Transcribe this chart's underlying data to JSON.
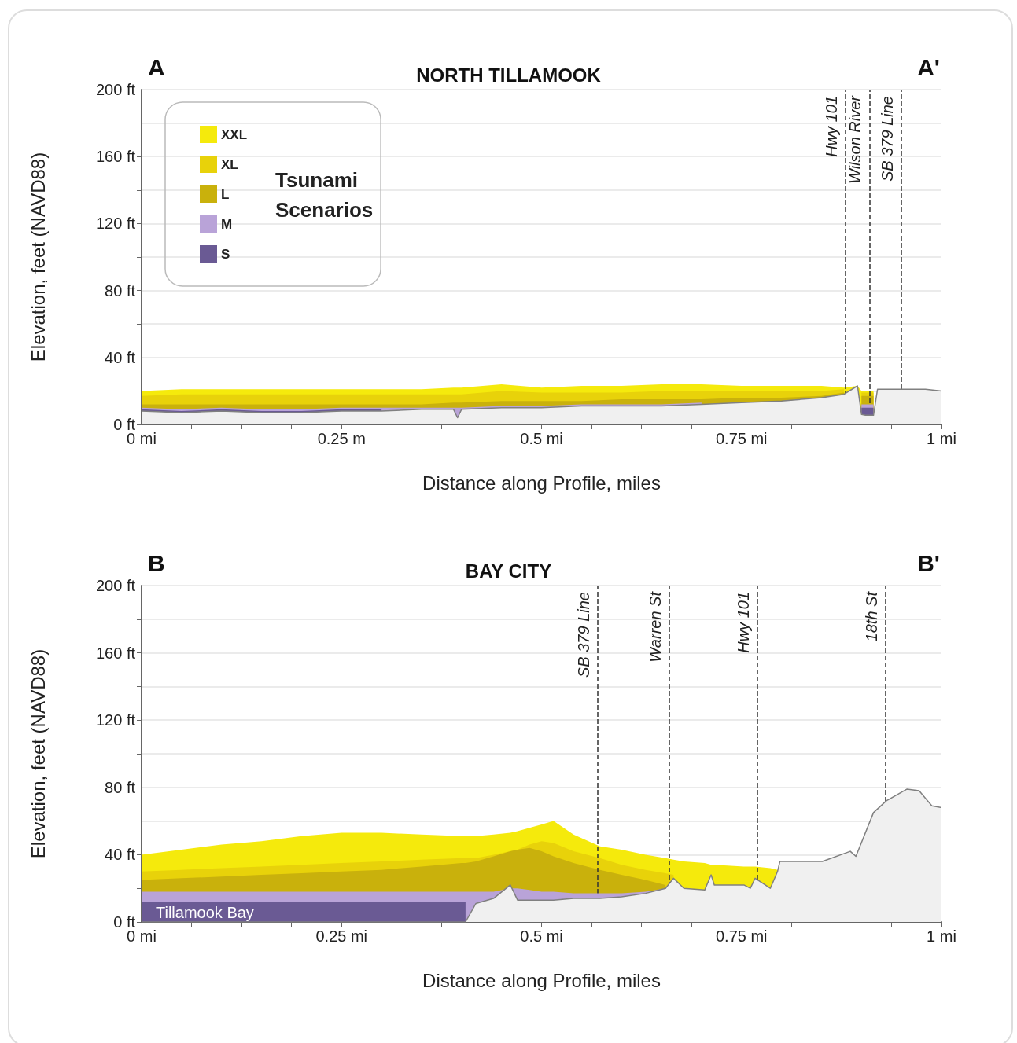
{
  "chart_data": [
    {
      "type": "area",
      "title": "NORTH TILLAMOOK",
      "xlabel": "Distance along Profile, miles",
      "ylabel": "Elevation, feet (NAVD88)",
      "legend": "top left",
      "legend_title": "Tsunami Scenarios",
      "grid": "y",
      "annotations": [
        "A",
        "A'"
      ],
      "xlim": [
        0,
        1
      ],
      "xticks": [
        {
          "value": 0,
          "label": "0 mi"
        },
        {
          "value": 0.0625,
          "label": null
        },
        {
          "value": 0.125,
          "label": null
        },
        {
          "value": 0.1875,
          "label": null
        },
        {
          "value": 0.25,
          "label": "0.25 m"
        },
        {
          "value": 0.3125,
          "label": null
        },
        {
          "value": 0.375,
          "label": null
        },
        {
          "value": 0.4375,
          "label": null
        },
        {
          "value": 0.5,
          "label": "0.5 mi"
        },
        {
          "value": 0.5625,
          "label": null
        },
        {
          "value": 0.625,
          "label": null
        },
        {
          "value": 0.6875,
          "label": null
        },
        {
          "value": 0.75,
          "label": "0.75 mi"
        },
        {
          "value": 0.8125,
          "label": null
        },
        {
          "value": 0.875,
          "label": null
        },
        {
          "value": 0.9375,
          "label": null
        },
        {
          "value": 1,
          "label": "1 mi"
        }
      ],
      "ylim": [
        0,
        200
      ],
      "yticks": [
        {
          "value": 0,
          "label": "0 ft"
        },
        {
          "value": 20,
          "label": null
        },
        {
          "value": 40,
          "label": "40 ft"
        },
        {
          "value": 60,
          "label": null
        },
        {
          "value": 80,
          "label": "80 ft"
        },
        {
          "value": 100,
          "label": null
        },
        {
          "value": 120,
          "label": "120 ft"
        },
        {
          "value": 140,
          "label": null
        },
        {
          "value": 160,
          "label": "160 ft"
        },
        {
          "value": 180,
          "label": null
        },
        {
          "value": 200,
          "label": "200 ft"
        }
      ],
      "ref_lines": [
        {
          "axis": "x",
          "value": 0.883,
          "label": "Hwy 101",
          "line_style": "dashed",
          "color": "#333333"
        },
        {
          "axis": "x",
          "value": 0.913,
          "label": "Wilson River",
          "line_style": "dashed",
          "color": "#333333"
        },
        {
          "axis": "x",
          "value": 0.949,
          "label": "SB 379 Line",
          "line_style": "dashed",
          "color": "#333333"
        }
      ],
      "x": [
        0,
        0.05,
        0.1,
        0.15,
        0.2,
        0.25,
        0.3,
        0.35,
        0.39,
        0.395,
        0.4,
        0.45,
        0.5,
        0.55,
        0.6,
        0.65,
        0.7,
        0.75,
        0.8,
        0.85,
        0.878,
        0.895,
        0.9,
        0.905,
        0.915,
        0.92,
        0.93,
        0.95,
        0.98,
        1.0
      ],
      "series": [
        {
          "name": "XXL",
          "color": "#f5ea0c",
          "values": [
            20,
            21,
            21,
            21,
            21,
            21,
            21,
            21,
            22,
            22,
            22,
            24,
            22,
            23,
            23,
            24,
            24,
            23,
            23,
            23,
            22,
            23,
            20,
            20,
            20,
            null,
            null,
            null,
            null,
            null
          ]
        },
        {
          "name": "XL",
          "color": "#e8d20a",
          "values": [
            17,
            18,
            18,
            18,
            18,
            18,
            18,
            18,
            18,
            18,
            18,
            20,
            19,
            19,
            19,
            20,
            20,
            20,
            20,
            20,
            21,
            null,
            19,
            19,
            19,
            null,
            null,
            null,
            null,
            null
          ]
        },
        {
          "name": "L",
          "color": "#c9b10c",
          "values": [
            12,
            12,
            12,
            12,
            12,
            12,
            12,
            12,
            13,
            13,
            13,
            14,
            14,
            14,
            15,
            15,
            15,
            16,
            16,
            17,
            19,
            null,
            17,
            17,
            17,
            null,
            null,
            null,
            null,
            null
          ]
        },
        {
          "name": "M",
          "color": "#b9a3d8",
          "values": [
            10,
            9,
            10,
            9,
            9,
            10,
            10,
            10,
            10,
            10,
            10,
            11,
            11,
            12,
            12,
            12,
            13,
            null,
            null,
            null,
            null,
            null,
            12,
            12,
            12,
            null,
            null,
            null,
            null,
            null
          ]
        },
        {
          "name": "S",
          "color": "#6a5a94",
          "values": [
            9,
            8,
            9,
            8,
            8,
            9,
            9,
            null,
            null,
            null,
            null,
            null,
            null,
            null,
            null,
            null,
            null,
            null,
            null,
            null,
            null,
            null,
            10,
            10,
            10,
            null,
            null,
            null,
            null,
            null
          ]
        },
        {
          "color": "#808080",
          "values": [
            8,
            7,
            8,
            7,
            7,
            8,
            8,
            9,
            9,
            4,
            9,
            10,
            10,
            11,
            11,
            11,
            12,
            13,
            14,
            16,
            18,
            23,
            6,
            5.5,
            5.5,
            21,
            21,
            21,
            21,
            20
          ]
        }
      ]
    },
    {
      "type": "area",
      "title": "BAY CITY",
      "xlabel": "Distance along Profile, miles",
      "ylabel": "Elevation, feet (NAVD88)",
      "grid": "y",
      "annotations": [
        "B",
        "B'",
        "Tillamook Bay"
      ],
      "xlim": [
        0,
        1
      ],
      "xticks": [
        {
          "value": 0,
          "label": "0 mi"
        },
        {
          "value": 0.0625,
          "label": null
        },
        {
          "value": 0.125,
          "label": null
        },
        {
          "value": 0.1875,
          "label": null
        },
        {
          "value": 0.25,
          "label": "0.25 mi"
        },
        {
          "value": 0.3125,
          "label": null
        },
        {
          "value": 0.375,
          "label": null
        },
        {
          "value": 0.4375,
          "label": null
        },
        {
          "value": 0.5,
          "label": "0.5 mi"
        },
        {
          "value": 0.5625,
          "label": null
        },
        {
          "value": 0.625,
          "label": null
        },
        {
          "value": 0.6875,
          "label": null
        },
        {
          "value": 0.75,
          "label": "0.75 mi"
        },
        {
          "value": 0.8125,
          "label": null
        },
        {
          "value": 0.875,
          "label": null
        },
        {
          "value": 0.9375,
          "label": null
        },
        {
          "value": 1,
          "label": "1 mi"
        }
      ],
      "ylim": [
        0,
        200
      ],
      "yticks": [
        {
          "value": 0,
          "label": "0 ft"
        },
        {
          "value": 20,
          "label": null
        },
        {
          "value": 40,
          "label": "40 ft"
        },
        {
          "value": 60,
          "label": null
        },
        {
          "value": 80,
          "label": "80 ft"
        },
        {
          "value": 100,
          "label": null
        },
        {
          "value": 120,
          "label": "120 ft"
        },
        {
          "value": 140,
          "label": null
        },
        {
          "value": 160,
          "label": "160 ft"
        },
        {
          "value": 180,
          "label": null
        },
        {
          "value": 200,
          "label": "200 ft"
        }
      ],
      "ref_lines": [
        {
          "axis": "x",
          "value": 0.573,
          "label": "SB 379 Line",
          "line_style": "dashed",
          "color": "#333333"
        },
        {
          "axis": "x",
          "value": 0.659,
          "label": "Warren St",
          "line_style": "dashed",
          "color": "#333333"
        },
        {
          "axis": "x",
          "value": 0.77,
          "label": "Hwy 101",
          "line_style": "dashed",
          "color": "#333333"
        },
        {
          "axis": "x",
          "value": 0.931,
          "label": "18th St",
          "line_style": "dashed",
          "color": "#333333"
        }
      ],
      "x": [
        0,
        0.05,
        0.1,
        0.15,
        0.2,
        0.25,
        0.3,
        0.35,
        0.4,
        0.405,
        0.418,
        0.44,
        0.461,
        0.47,
        0.485,
        0.5,
        0.515,
        0.54,
        0.573,
        0.6,
        0.63,
        0.655,
        0.665,
        0.678,
        0.704,
        0.712,
        0.716,
        0.753,
        0.761,
        0.767,
        0.786,
        0.795,
        0.798,
        0.851,
        0.886,
        0.893,
        0.915,
        0.931,
        0.957,
        0.972,
        0.988,
        1.0
      ],
      "series": [
        {
          "color": "#f5ea0c",
          "values": [
            40,
            43,
            46,
            48,
            51,
            53,
            53,
            52,
            51,
            51,
            51,
            52,
            53,
            54,
            56,
            58,
            60,
            52,
            45,
            43,
            40,
            38,
            37,
            36,
            35,
            34,
            34,
            33,
            33,
            33,
            32,
            31,
            null,
            null,
            null,
            null,
            null,
            null,
            null,
            null,
            null,
            null
          ]
        },
        {
          "color": "#e8d20a",
          "values": [
            30,
            31,
            32,
            33,
            34,
            35,
            36,
            37,
            38,
            38,
            38,
            40,
            42,
            43,
            46,
            48,
            47,
            42,
            38,
            34,
            31,
            29,
            28,
            null,
            null,
            null,
            null,
            null,
            null,
            null,
            null,
            null,
            null,
            null,
            null,
            null,
            null,
            null,
            null,
            null,
            null,
            null
          ]
        },
        {
          "color": "#c9b10c",
          "values": [
            25,
            26,
            27,
            28,
            29,
            30,
            31,
            33,
            35,
            35,
            36,
            39,
            42,
            43,
            44,
            42,
            39,
            35,
            31,
            28,
            25,
            22,
            null,
            null,
            null,
            null,
            null,
            null,
            null,
            null,
            null,
            null,
            null,
            null,
            null,
            null,
            null,
            null,
            null,
            null,
            null,
            null
          ]
        },
        {
          "color": "#b9a3d8",
          "values": [
            18,
            18,
            18,
            18,
            18,
            18,
            18,
            18,
            18,
            18,
            18,
            18,
            20,
            20,
            19,
            18,
            18,
            17,
            17,
            17,
            18,
            20,
            null,
            null,
            null,
            null,
            null,
            null,
            null,
            null,
            null,
            null,
            null,
            null,
            null,
            null,
            null,
            null,
            null,
            null,
            null,
            null
          ]
        },
        {
          "color": "#6a5a94",
          "values": [
            12,
            12,
            12,
            12,
            12,
            12,
            12,
            12,
            12,
            12,
            null,
            null,
            null,
            null,
            null,
            null,
            null,
            null,
            null,
            null,
            null,
            null,
            null,
            null,
            null,
            null,
            null,
            null,
            null,
            null,
            null,
            null,
            null,
            null,
            null,
            null,
            null,
            null,
            null,
            null,
            null,
            null
          ]
        },
        {
          "color": "#808080",
          "values": [
            0,
            0,
            0,
            0,
            0,
            0,
            0,
            0,
            0,
            0,
            11,
            14,
            22,
            13,
            13,
            13,
            13,
            14,
            14,
            15,
            17,
            20,
            26,
            20,
            19,
            28,
            22,
            22,
            20,
            26,
            20,
            30,
            36,
            36,
            42,
            39,
            65,
            72,
            79,
            78,
            69,
            68
          ]
        }
      ]
    }
  ]
}
